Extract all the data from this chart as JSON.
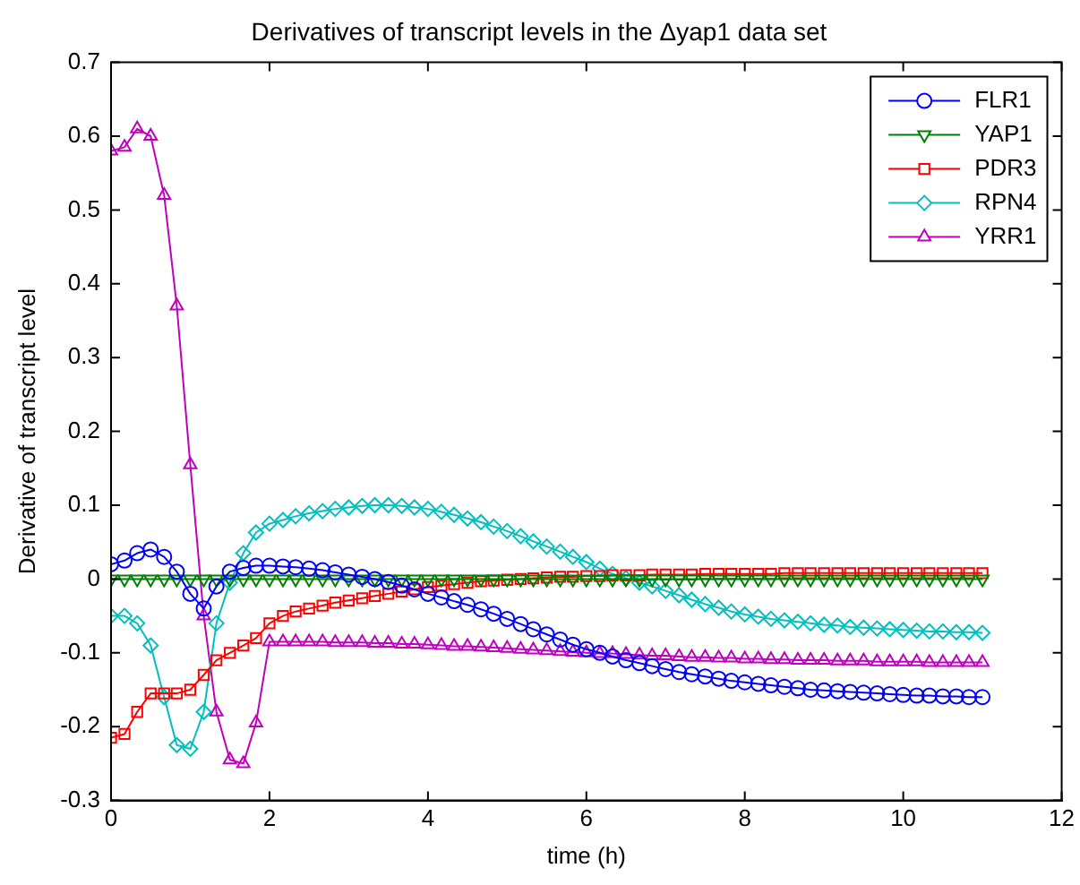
{
  "chart_data": {
    "type": "line",
    "title": "Derivatives of transcript levels in the Δyap1 data set",
    "xlabel": "time (h)",
    "ylabel": "Derivative of transcript level",
    "xlim": [
      0,
      12
    ],
    "xticks": [
      0,
      2,
      4,
      6,
      8,
      10,
      12
    ],
    "ylim": [
      -0.3,
      0.7
    ],
    "yticks": [
      -0.3,
      -0.2,
      -0.1,
      0,
      0.1,
      0.2,
      0.3,
      0.4,
      0.5,
      0.6,
      0.7
    ],
    "grid": false,
    "legend": "top right",
    "line_style": "solid",
    "x": [
      0,
      0.17,
      0.33,
      0.5,
      0.67,
      0.83,
      1,
      1.17,
      1.33,
      1.5,
      1.67,
      1.83,
      2,
      2.17,
      2.33,
      2.5,
      2.67,
      2.83,
      3,
      3.17,
      3.33,
      3.5,
      3.67,
      3.83,
      4,
      4.17,
      4.33,
      4.5,
      4.67,
      4.83,
      5,
      5.17,
      5.33,
      5.5,
      5.67,
      5.83,
      6,
      6.17,
      6.33,
      6.5,
      6.67,
      6.83,
      7,
      7.17,
      7.33,
      7.5,
      7.67,
      7.83,
      8,
      8.17,
      8.33,
      8.5,
      8.67,
      8.83,
      9,
      9.17,
      9.33,
      9.5,
      9.67,
      9.83,
      10,
      10.17,
      10.33,
      10.5,
      10.67,
      10.83,
      11
    ],
    "series": [
      {
        "name": "FLR1",
        "color": "#0000ff",
        "marker": "circle",
        "values": [
          0.02,
          0.025,
          0.035,
          0.04,
          0.03,
          0.01,
          -0.02,
          -0.04,
          -0.01,
          0.01,
          0.015,
          0.018,
          0.018,
          0.017,
          0.016,
          0.014,
          0.012,
          0.009,
          0.006,
          0.003,
          0.0,
          -0.004,
          -0.009,
          -0.014,
          -0.02,
          -0.025,
          -0.03,
          -0.035,
          -0.041,
          -0.047,
          -0.054,
          -0.061,
          -0.068,
          -0.075,
          -0.082,
          -0.089,
          -0.095,
          -0.1,
          -0.105,
          -0.11,
          -0.114,
          -0.118,
          -0.122,
          -0.126,
          -0.129,
          -0.132,
          -0.135,
          -0.138,
          -0.14,
          -0.142,
          -0.144,
          -0.146,
          -0.148,
          -0.15,
          -0.151,
          -0.152,
          -0.153,
          -0.154,
          -0.155,
          -0.156,
          -0.157,
          -0.158,
          -0.158,
          -0.159,
          -0.159,
          -0.16,
          -0.16
        ]
      },
      {
        "name": "YAP1",
        "color": "#008000",
        "marker": "triangle-down",
        "values": [
          0,
          0,
          0,
          0,
          0,
          0,
          0,
          0,
          0,
          0,
          0,
          0,
          0,
          0,
          0,
          0,
          0,
          0,
          0,
          0,
          0,
          0,
          0,
          0,
          0,
          0,
          0,
          0,
          0,
          0,
          0,
          0,
          0,
          0,
          0,
          0,
          0,
          0,
          0,
          0,
          0,
          0,
          0,
          0,
          0,
          0,
          0,
          0,
          0,
          0,
          0,
          0,
          0,
          0,
          0,
          0,
          0,
          0,
          0,
          0,
          0,
          0,
          0,
          0,
          0,
          0,
          0
        ]
      },
      {
        "name": "PDR3",
        "color": "#ff0000",
        "marker": "square",
        "values": [
          -0.215,
          -0.21,
          -0.18,
          -0.155,
          -0.155,
          -0.155,
          -0.15,
          -0.13,
          -0.11,
          -0.1,
          -0.09,
          -0.08,
          -0.06,
          -0.05,
          -0.044,
          -0.04,
          -0.036,
          -0.032,
          -0.029,
          -0.026,
          -0.023,
          -0.02,
          -0.017,
          -0.014,
          -0.011,
          -0.009,
          -0.007,
          -0.005,
          -0.003,
          -0.002,
          -0.001,
          0,
          0.001,
          0.002,
          0.003,
          0.003,
          0.004,
          0.004,
          0.005,
          0.005,
          0.005,
          0.006,
          0.006,
          0.006,
          0.006,
          0.007,
          0.007,
          0.007,
          0.007,
          0.007,
          0.007,
          0.008,
          0.008,
          0.008,
          0.008,
          0.008,
          0.008,
          0.008,
          0.008,
          0.008,
          0.008,
          0.008,
          0.008,
          0.008,
          0.008,
          0.008,
          0.008
        ]
      },
      {
        "name": "RPN4",
        "color": "#00bfbf",
        "marker": "diamond",
        "values": [
          -0.05,
          -0.05,
          -0.06,
          -0.09,
          -0.16,
          -0.225,
          -0.23,
          -0.18,
          -0.06,
          -0.005,
          0.035,
          0.063,
          0.075,
          0.08,
          0.085,
          0.089,
          0.092,
          0.095,
          0.097,
          0.099,
          0.1,
          0.1,
          0.099,
          0.097,
          0.095,
          0.091,
          0.087,
          0.082,
          0.077,
          0.071,
          0.065,
          0.058,
          0.051,
          0.044,
          0.037,
          0.03,
          0.023,
          0.014,
          0.007,
          0.001,
          -0.005,
          -0.01,
          -0.016,
          -0.022,
          -0.028,
          -0.034,
          -0.039,
          -0.044,
          -0.048,
          -0.051,
          -0.054,
          -0.056,
          -0.058,
          -0.06,
          -0.062,
          -0.063,
          -0.065,
          -0.066,
          -0.067,
          -0.068,
          -0.069,
          -0.07,
          -0.071,
          -0.071,
          -0.072,
          -0.072,
          -0.073
        ]
      },
      {
        "name": "YRR1",
        "color": "#bf00bf",
        "marker": "triangle",
        "values": [
          0.58,
          0.585,
          0.61,
          0.6,
          0.52,
          0.37,
          0.155,
          -0.05,
          -0.18,
          -0.245,
          -0.25,
          -0.195,
          -0.085,
          -0.085,
          -0.085,
          -0.085,
          -0.085,
          -0.086,
          -0.086,
          -0.086,
          -0.087,
          -0.087,
          -0.088,
          -0.088,
          -0.089,
          -0.09,
          -0.091,
          -0.091,
          -0.092,
          -0.093,
          -0.094,
          -0.095,
          -0.096,
          -0.097,
          -0.098,
          -0.099,
          -0.1,
          -0.101,
          -0.101,
          -0.102,
          -0.103,
          -0.104,
          -0.104,
          -0.105,
          -0.106,
          -0.106,
          -0.107,
          -0.107,
          -0.108,
          -0.108,
          -0.109,
          -0.109,
          -0.11,
          -0.11,
          -0.11,
          -0.111,
          -0.111,
          -0.111,
          -0.112,
          -0.112,
          -0.112,
          -0.112,
          -0.113,
          -0.113,
          -0.113,
          -0.113,
          -0.113
        ]
      }
    ]
  }
}
